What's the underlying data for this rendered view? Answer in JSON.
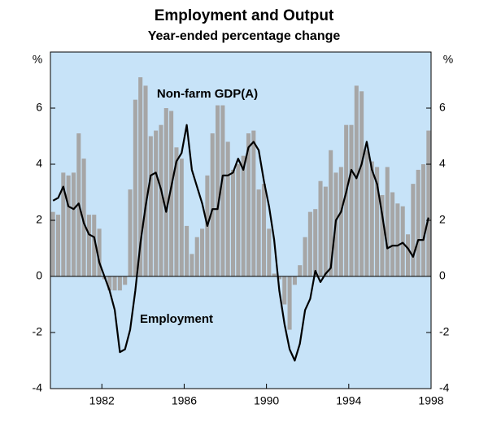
{
  "chart_data": {
    "type": "bar-line",
    "title": "Employment and Output",
    "subtitle": "Year-ended percentage change",
    "y_label": "%",
    "y2_label": "%",
    "x": [
      1979.5,
      1979.75,
      1980,
      1980.25,
      1980.5,
      1980.75,
      1981,
      1981.25,
      1981.5,
      1981.75,
      1982,
      1982.25,
      1982.5,
      1982.75,
      1983,
      1983.25,
      1983.5,
      1983.75,
      1984,
      1984.25,
      1984.5,
      1984.75,
      1985,
      1985.25,
      1985.5,
      1985.75,
      1986,
      1986.25,
      1986.5,
      1986.75,
      1987,
      1987.25,
      1987.5,
      1987.75,
      1988,
      1988.25,
      1988.5,
      1988.75,
      1989,
      1989.25,
      1989.5,
      1989.75,
      1990,
      1990.25,
      1990.5,
      1990.75,
      1991,
      1991.25,
      1991.5,
      1991.75,
      1992,
      1992.25,
      1992.5,
      1992.75,
      1993,
      1993.25,
      1993.5,
      1993.75,
      1994,
      1994.25,
      1994.5,
      1994.75,
      1995,
      1995.25,
      1995.5,
      1995.75,
      1996,
      1996.25,
      1996.5,
      1996.75,
      1997,
      1997.25,
      1997.5,
      1997.75
    ],
    "series": [
      {
        "name": "Non-farm GDP(A)",
        "type": "bar",
        "color": "#a6a6a6",
        "values": [
          2.3,
          2.2,
          3.7,
          3.6,
          3.7,
          5.1,
          4.2,
          2.2,
          2.2,
          1.7,
          -0.1,
          -0.5,
          -0.5,
          -0.5,
          -0.3,
          3.1,
          6.3,
          7.1,
          6.8,
          5.0,
          5.2,
          5.4,
          6.0,
          5.9,
          4.6,
          4.2,
          1.8,
          0.8,
          1.4,
          1.7,
          3.6,
          5.1,
          6.1,
          6.1,
          4.8,
          3.8,
          4.0,
          4.3,
          5.1,
          5.2,
          3.1,
          3.3,
          1.7,
          0.1,
          -0.1,
          -1.0,
          -1.9,
          -0.3,
          0.4,
          1.4,
          2.3,
          2.4,
          3.4,
          3.2,
          4.5,
          3.7,
          3.9,
          5.4,
          5.4,
          6.8,
          6.6,
          4.5,
          4.1,
          3.9,
          2.9,
          3.9,
          3.0,
          2.6,
          2.5,
          1.5,
          3.3,
          3.8,
          4.0,
          5.2
        ]
      },
      {
        "name": "Employment",
        "type": "line",
        "color": "#000000",
        "values": [
          2.7,
          2.8,
          3.2,
          2.5,
          2.4,
          2.6,
          1.9,
          1.5,
          1.4,
          0.5,
          0.0,
          -0.5,
          -1.2,
          -2.7,
          -2.6,
          -1.9,
          -0.5,
          1.2,
          2.5,
          3.6,
          3.7,
          3.1,
          2.3,
          3.2,
          4.1,
          4.4,
          5.4,
          3.8,
          3.2,
          2.6,
          1.8,
          2.4,
          2.4,
          3.6,
          3.6,
          3.7,
          4.2,
          3.8,
          4.6,
          4.8,
          4.5,
          3.4,
          2.5,
          1.3,
          -0.5,
          -1.7,
          -2.6,
          -3.0,
          -2.4,
          -1.2,
          -0.8,
          0.2,
          -0.2,
          0.1,
          0.3,
          2.0,
          2.3,
          3.0,
          3.8,
          3.5,
          4.0,
          4.8,
          3.8,
          3.3,
          2.2,
          1.0,
          1.1,
          1.1,
          1.2,
          1.0,
          0.7,
          1.3,
          1.3,
          2.1
        ]
      }
    ],
    "xlim": [
      1979.5,
      1998
    ],
    "xticks": [
      1982,
      1986,
      1990,
      1994,
      1998
    ],
    "ylim": [
      -4,
      8
    ],
    "yticks": [
      -4,
      -2,
      0,
      2,
      4,
      6
    ],
    "y2lim": [
      -4,
      8
    ],
    "y2ticks": [
      -4,
      -2,
      0,
      2,
      4,
      6
    ],
    "background": "#c7e3f8"
  }
}
